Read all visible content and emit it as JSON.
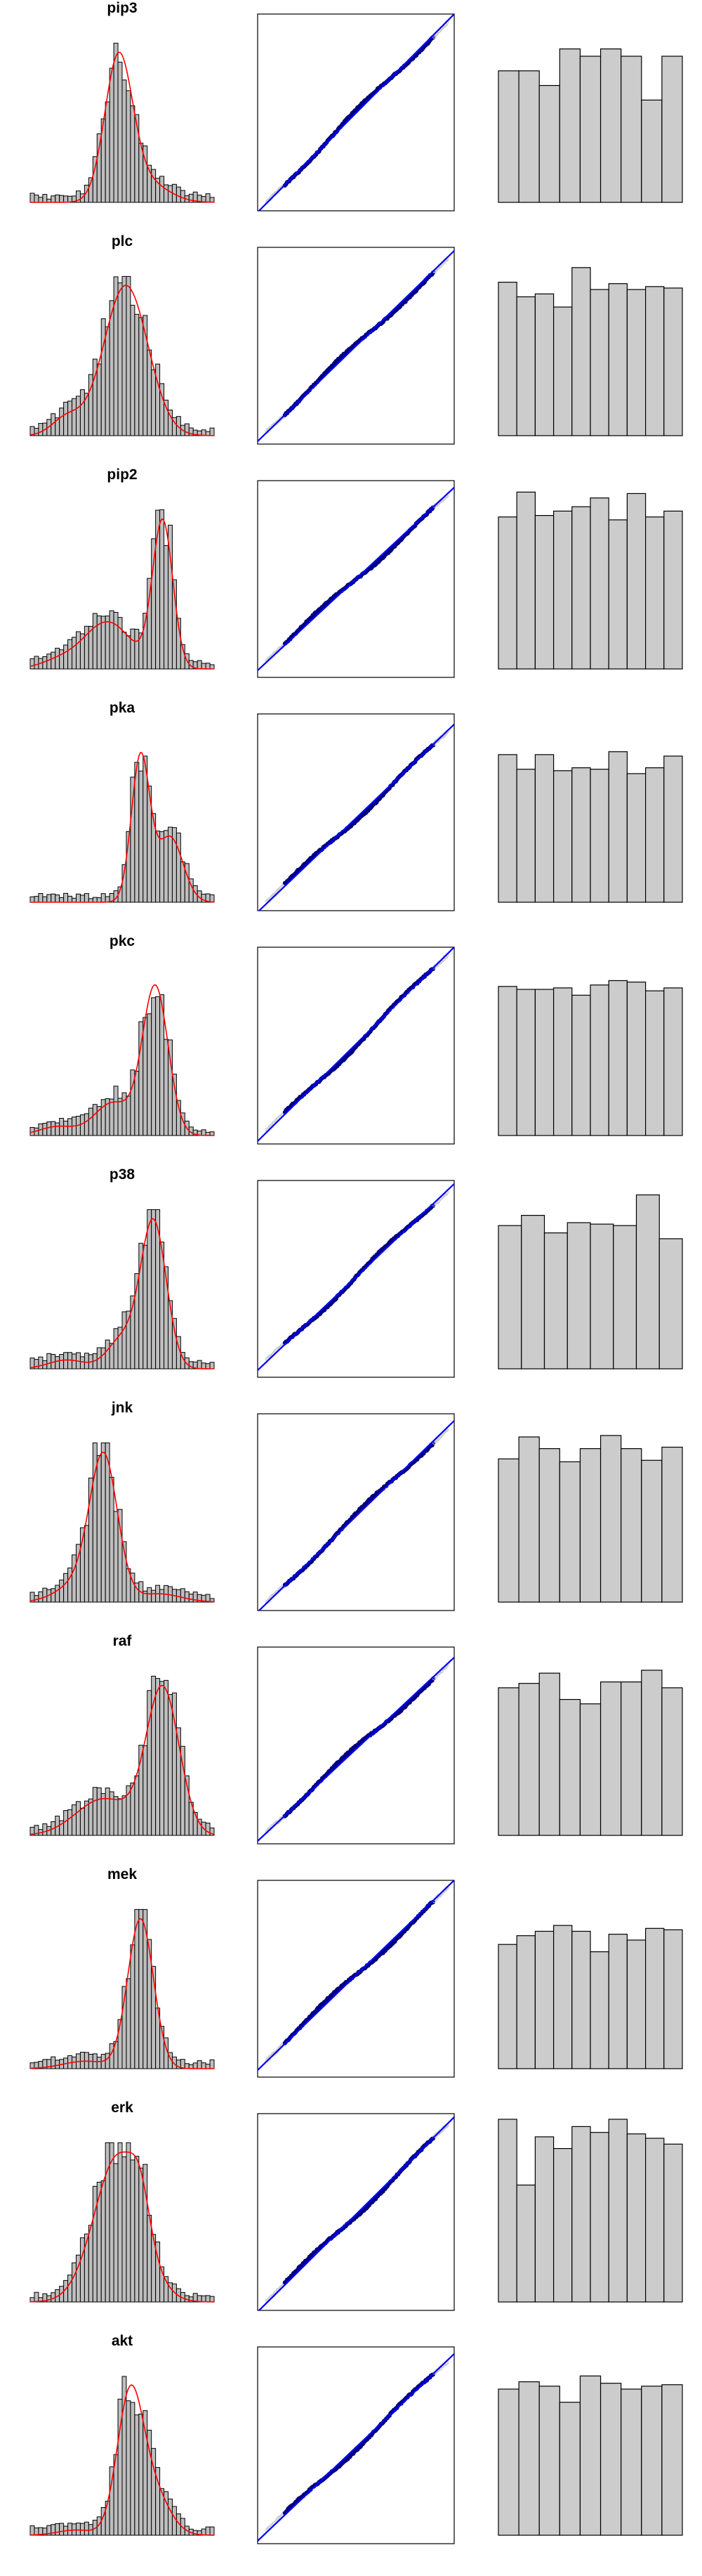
{
  "variables": [
    "pip3",
    "plc",
    "pip2",
    "pka",
    "pkc",
    "p38",
    "jnk",
    "raf",
    "mek",
    "erk",
    "akt"
  ],
  "colors": {
    "hist_fill": "#bebebe",
    "hist_stroke": "#000000",
    "density_curve": "#ff0000",
    "qq_points": "#000080",
    "qq_outlier_points": "#c8c8c8",
    "qq_line": "#0000ff",
    "rank_fill": "#cccccc",
    "frame": "#000000"
  },
  "chart_data": [
    {
      "title": "pip3",
      "type": "bar",
      "shape": "unimodal, right tail",
      "rank_values": [
        9,
        9,
        8,
        10.5,
        10,
        10.5,
        10,
        7,
        10
      ]
    },
    {
      "title": "plc",
      "type": "bar",
      "shape": "unimodal, wide",
      "rank_values": [
        10.5,
        9.5,
        9.7,
        8.8,
        11.5,
        10,
        10.4,
        10,
        10.2,
        10.1
      ]
    },
    {
      "title": "pip2",
      "type": "bar",
      "shape": "left-skewed",
      "rank_values": [
        10.4,
        12.1,
        10.5,
        10.8,
        11.1,
        11.7,
        10.2,
        12,
        10.4,
        10.8
      ]
    },
    {
      "title": "pka",
      "type": "bar",
      "shape": "right-skewed",
      "rank_values": [
        10.1,
        9.1,
        10.1,
        9,
        9.2,
        9.1,
        10.3,
        8.8,
        9.2,
        10
      ]
    },
    {
      "title": "pkc",
      "type": "bar",
      "shape": "left-skewed",
      "rank_values": [
        10.2,
        10,
        10,
        10.1,
        9.6,
        10.3,
        10.6,
        10.5,
        9.9,
        10.1
      ]
    },
    {
      "title": "p38",
      "type": "bar",
      "shape": "left-skewed",
      "rank_values": [
        9.8,
        10.5,
        9.3,
        10,
        9.9,
        9.8,
        11.9,
        8.9
      ]
    },
    {
      "title": "jnk",
      "type": "bar",
      "shape": "right-skewed",
      "rank_values": [
        9.8,
        11.3,
        10.5,
        9.6,
        10.5,
        11.4,
        10.5,
        9.7,
        10.6
      ]
    },
    {
      "title": "raf",
      "type": "bar",
      "shape": "left-skewed",
      "rank_values": [
        10.1,
        10.4,
        11.1,
        9.3,
        9,
        10.5,
        10.5,
        11.3,
        10.1
      ]
    },
    {
      "title": "mek",
      "type": "bar",
      "shape": "unimodal, narrow",
      "rank_values": [
        8.5,
        9.1,
        9.4,
        9.8,
        9.4,
        8,
        9.2,
        8.8,
        9.6,
        9.5
      ]
    },
    {
      "title": "erk",
      "type": "bar",
      "shape": "unimodal, wide",
      "rank_values": [
        12.5,
        8,
        11.3,
        10.5,
        12,
        11.6,
        12.5,
        11.5,
        11.2,
        10.8
      ]
    },
    {
      "title": "akt",
      "type": "bar",
      "shape": "right-skewed",
      "rank_values": [
        10,
        10.5,
        10.2,
        9.1,
        10.9,
        10.4,
        10,
        10.2,
        10.3
      ]
    }
  ]
}
